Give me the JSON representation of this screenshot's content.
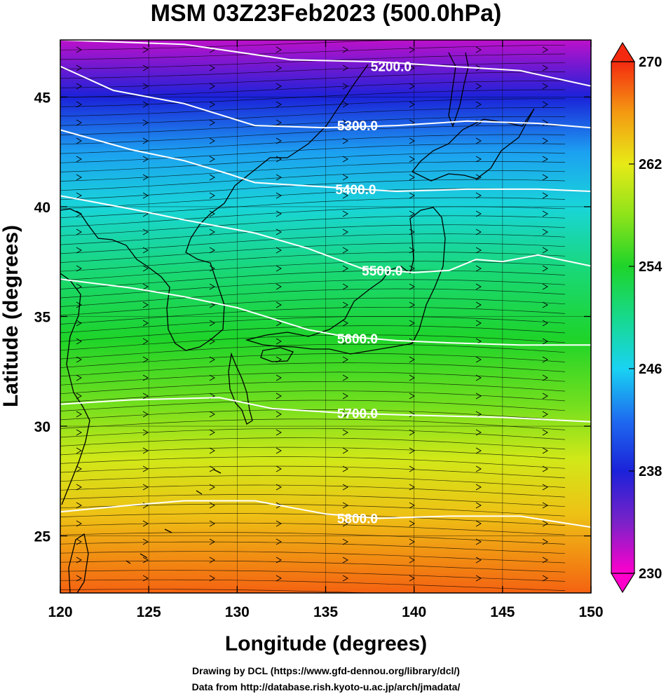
{
  "chart_data": {
    "type": "heatmap",
    "title": "MSM 03Z23Feb2023 (500.0hPa)",
    "xlabel": "Longitude (degrees)",
    "ylabel": "Latitude  (degrees)",
    "xlim": [
      120,
      150
    ],
    "ylim": [
      22.4,
      47.6
    ],
    "x_ticks": [
      120,
      125,
      130,
      135,
      140,
      145,
      150
    ],
    "y_ticks": [
      25,
      30,
      35,
      40,
      45
    ],
    "grid": true,
    "colorbar": {
      "range": [
        230,
        270
      ],
      "ticks": [
        230,
        238,
        246,
        254,
        262,
        270
      ],
      "extend": "both",
      "colors": {
        "230": "#ff00cc",
        "234": "#7a22c8",
        "238": "#1b22d9",
        "242": "#1e6cf0",
        "246": "#19d3f2",
        "250": "#17d98c",
        "254": "#1ed42a",
        "258": "#8ee31a",
        "262": "#e7ea17",
        "266": "#f49a12",
        "270": "#f42a10"
      }
    },
    "temperature_by_latitude": [
      {
        "lat": 47.6,
        "t": 232
      },
      {
        "lat": 45,
        "t": 238
      },
      {
        "lat": 42.5,
        "t": 244
      },
      {
        "lat": 40,
        "t": 247
      },
      {
        "lat": 37,
        "t": 251
      },
      {
        "lat": 34,
        "t": 254
      },
      {
        "lat": 31,
        "t": 257
      },
      {
        "lat": 28.5,
        "t": 261
      },
      {
        "lat": 26,
        "t": 264
      },
      {
        "lat": 22.4,
        "t": 268
      }
    ],
    "contours": [
      {
        "label": "5200.0",
        "points": [
          [
            120,
            47.6
          ],
          [
            127,
            47.4
          ],
          [
            133,
            46.7
          ],
          [
            138,
            46.6
          ],
          [
            142,
            46.4
          ],
          [
            146,
            46.2
          ],
          [
            150,
            45.5
          ]
        ],
        "label_at": [
          138.7,
          46.4
        ]
      },
      {
        "label": "5300.0",
        "points": [
          [
            120,
            46.4
          ],
          [
            123,
            45.3
          ],
          [
            127,
            44.7
          ],
          [
            131,
            43.7
          ],
          [
            135,
            43.6
          ],
          [
            139,
            43.7
          ],
          [
            143,
            43.9
          ],
          [
            147,
            43.8
          ],
          [
            150,
            43.6
          ]
        ],
        "label_at": [
          136.8,
          43.7
        ]
      },
      {
        "label": "5400.0",
        "points": [
          [
            120,
            43.5
          ],
          [
            124,
            42.6
          ],
          [
            127,
            42.1
          ],
          [
            129.5,
            41.5
          ],
          [
            131,
            41.1
          ],
          [
            135,
            40.9
          ],
          [
            139,
            40.7
          ],
          [
            143,
            40.8
          ],
          [
            147,
            40.8
          ],
          [
            150,
            40.7
          ]
        ],
        "label_at": [
          136.7,
          40.8
        ]
      },
      {
        "label": "5500.0",
        "points": [
          [
            120,
            40.5
          ],
          [
            124,
            39.9
          ],
          [
            127,
            39.4
          ],
          [
            131,
            38.8
          ],
          [
            134,
            38.1
          ],
          [
            137,
            37.2
          ],
          [
            140,
            37.0
          ],
          [
            142,
            37.1
          ],
          [
            143.5,
            37.6
          ],
          [
            145,
            37.5
          ],
          [
            147,
            37.8
          ],
          [
            150,
            37.3
          ]
        ],
        "label_at": [
          138.2,
          37.1
        ]
      },
      {
        "label": "5600.0",
        "points": [
          [
            120,
            36.7
          ],
          [
            124,
            36.3
          ],
          [
            127,
            35.9
          ],
          [
            130,
            35.4
          ],
          [
            132,
            34.9
          ],
          [
            134,
            34.4
          ],
          [
            136,
            34.1
          ],
          [
            139,
            33.9
          ],
          [
            142,
            33.8
          ],
          [
            146,
            33.7
          ],
          [
            150,
            33.7
          ]
        ],
        "label_at": [
          136.8,
          34.0
        ]
      },
      {
        "label": "5700.0",
        "points": [
          [
            120,
            31.0
          ],
          [
            124,
            31.2
          ],
          [
            129,
            31.3
          ],
          [
            132,
            30.8
          ],
          [
            136,
            30.6
          ],
          [
            140,
            30.5
          ],
          [
            145,
            30.4
          ],
          [
            150,
            30.2
          ]
        ],
        "label_at": [
          136.8,
          30.6
        ]
      },
      {
        "label": "5800.0",
        "points": [
          [
            120,
            26.1
          ],
          [
            124,
            26.4
          ],
          [
            127,
            26.6
          ],
          [
            131,
            26.6
          ],
          [
            135,
            26.0
          ],
          [
            138,
            25.8
          ],
          [
            142,
            25.9
          ],
          [
            146,
            25.9
          ],
          [
            150,
            25.4
          ]
        ],
        "label_at": [
          136.8,
          25.8
        ]
      }
    ]
  },
  "credits": {
    "line1": "Drawing by DCL (https://www.gfd-dennou.org/library/dcl/)",
    "line2": "Data from http://database.rish.kyoto-u.ac.jp/arch/jmadata/"
  }
}
